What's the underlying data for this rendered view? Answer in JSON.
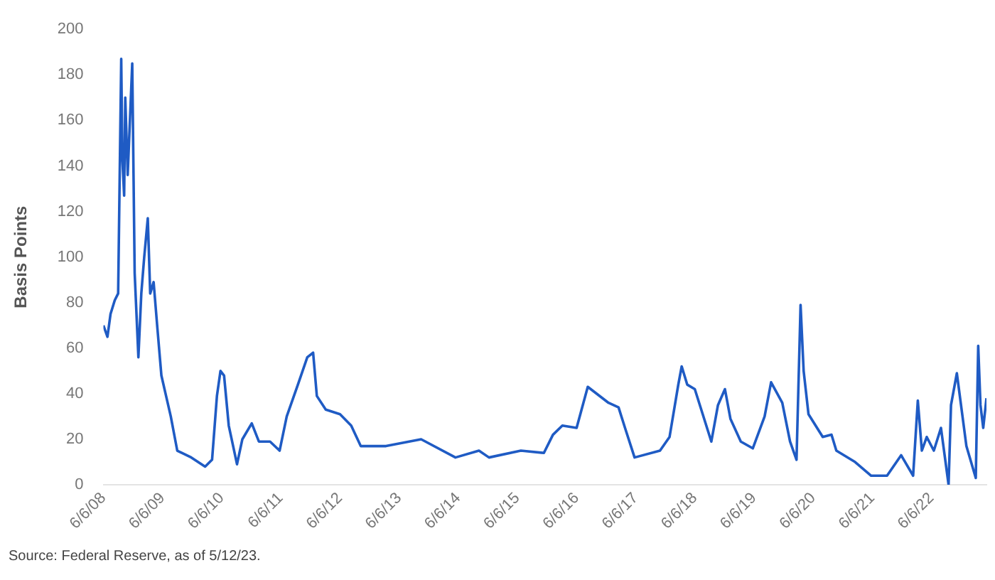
{
  "chart_data": {
    "type": "line",
    "ylabel": "Basis Points",
    "annotations": [
      "Source: Federal Reserve, as of 5/12/23."
    ],
    "x": [
      "2008-06-06",
      "2008-07-01",
      "2008-07-20",
      "2008-08-15",
      "2008-09-05",
      "2008-09-24",
      "2008-10-01",
      "2008-10-12",
      "2008-10-19",
      "2008-11-03",
      "2008-12-01",
      "2008-12-16",
      "2009-01-08",
      "2009-01-26",
      "2009-02-13",
      "2009-03-07",
      "2009-03-22",
      "2009-04-12",
      "2009-05-05",
      "2009-05-30",
      "2009-06-28",
      "2009-07-27",
      "2009-09-05",
      "2009-12-01",
      "2010-02-24",
      "2010-04-08",
      "2010-05-08",
      "2010-05-30",
      "2010-06-21",
      "2010-07-20",
      "2010-09-09",
      "2010-10-12",
      "2010-12-09",
      "2011-01-22",
      "2011-04-01",
      "2011-05-30",
      "2011-07-13",
      "2011-09-20",
      "2011-11-17",
      "2011-12-23",
      "2012-01-15",
      "2012-03-10",
      "2012-06-06",
      "2012-08-14",
      "2012-10-12",
      "2013-03-17",
      "2013-10-20",
      "2014-05-20",
      "2014-10-12",
      "2014-12-13",
      "2015-06-28",
      "2015-11-17",
      "2016-01-12",
      "2016-03-10",
      "2016-06-06",
      "2016-08-14",
      "2016-12-20",
      "2017-02-20",
      "2017-04-01",
      "2017-05-30",
      "2017-11-03",
      "2018-01-01",
      "2018-02-24",
      "2018-03-17",
      "2018-04-20",
      "2018-06-06",
      "2018-09-16",
      "2018-10-27",
      "2018-12-09",
      "2019-01-12",
      "2019-03-17",
      "2019-05-30",
      "2019-08-11",
      "2019-09-20",
      "2019-11-28",
      "2020-01-15",
      "2020-02-24",
      "2020-03-20",
      "2020-04-08",
      "2020-05-08",
      "2020-08-04",
      "2020-09-27",
      "2020-10-27",
      "2021-02-20",
      "2021-05-30",
      "2021-09-05",
      "2021-12-01",
      "2022-02-13",
      "2022-03-14",
      "2022-04-08",
      "2022-05-08",
      "2022-06-21",
      "2022-08-04",
      "2022-09-20",
      "2022-10-05",
      "2022-11-10",
      "2023-01-08",
      "2023-03-07",
      "2023-03-22",
      "2023-04-05",
      "2023-04-22",
      "2023-05-12"
    ],
    "series": [
      {
        "color": "#1f5bc4",
        "values": [
          70,
          65,
          75,
          81,
          84,
          187,
          143,
          127,
          170,
          136,
          185,
          93,
          56,
          84,
          100,
          117,
          84,
          89,
          69,
          48,
          39,
          30,
          15,
          12,
          8,
          11,
          39,
          50,
          48,
          26,
          9,
          20,
          27,
          19,
          19,
          15,
          30,
          44,
          56,
          58,
          39,
          33,
          31,
          26,
          17,
          17,
          20,
          12,
          15,
          12,
          15,
          14,
          22,
          26,
          25,
          43,
          36,
          34,
          25,
          12,
          15,
          21,
          44,
          52,
          44,
          42,
          19,
          35,
          42,
          29,
          19,
          16,
          30,
          45,
          36,
          19,
          11,
          79,
          50,
          31,
          21,
          22,
          15,
          10,
          4,
          4,
          13,
          4,
          37,
          15,
          21,
          15,
          25,
          0,
          35,
          49,
          17,
          3,
          61,
          35,
          25,
          38
        ]
      }
    ],
    "xticks": [
      {
        "value": "2008-06-06",
        "label": "6/6/08"
      },
      {
        "value": "2009-06-06",
        "label": "6/6/09"
      },
      {
        "value": "2010-06-06",
        "label": "6/6/10"
      },
      {
        "value": "2011-06-06",
        "label": "6/6/11"
      },
      {
        "value": "2012-06-06",
        "label": "6/6/12"
      },
      {
        "value": "2013-06-06",
        "label": "6/6/13"
      },
      {
        "value": "2014-06-06",
        "label": "6/6/14"
      },
      {
        "value": "2015-06-06",
        "label": "6/6/15"
      },
      {
        "value": "2016-06-06",
        "label": "6/6/16"
      },
      {
        "value": "2017-06-06",
        "label": "6/6/17"
      },
      {
        "value": "2018-06-06",
        "label": "6/6/18"
      },
      {
        "value": "2019-06-06",
        "label": "6/6/19"
      },
      {
        "value": "2020-06-06",
        "label": "6/6/20"
      },
      {
        "value": "2021-06-06",
        "label": "6/6/21"
      },
      {
        "value": "2022-06-06",
        "label": "6/6/22"
      }
    ],
    "xlim": [
      "2008-06-06",
      "2023-05-12"
    ],
    "ylim": [
      0,
      200
    ],
    "yticks": [
      0,
      20,
      40,
      60,
      80,
      100,
      120,
      140,
      160,
      180,
      200
    ],
    "grid": false,
    "legend": false,
    "marker": "none",
    "line_style": "solid"
  }
}
